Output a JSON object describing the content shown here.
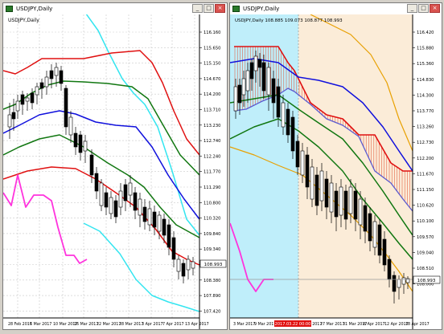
{
  "window_controls": {
    "minimize": "_",
    "maximize": "□",
    "close": "×"
  },
  "left": {
    "window_title": "USDJPY,Daily",
    "chart_label": "USDJPY,Daily",
    "price_ticks": [
      "116.160",
      "115.650",
      "115.150",
      "114.670",
      "114.200",
      "113.710",
      "113.230",
      "112.740",
      "112.240",
      "111.770",
      "111.290",
      "110.800",
      "110.320",
      "109.840",
      "109.340",
      "108.860",
      "108.380",
      "107.890",
      "107.420"
    ],
    "current_price": "108.993",
    "date_ticks": [
      "28 Feb 2017",
      "6 Mar 2017",
      "10 Mar 2017",
      "16 Mar 2017",
      "22 Mar 2017",
      "28 Mar 2017",
      "3 Apr 2017",
      "7 Apr 2017",
      "13 Apr 2017"
    ]
  },
  "right": {
    "window_title": "USDJPY,Daily",
    "chart_label": "USDJPY,Daily  108.885 109.073 108.877 108.993",
    "price_ticks": [
      "116.420",
      "115.880",
      "115.360",
      "114.830",
      "114.300",
      "113.770",
      "113.260",
      "112.730",
      "112.200",
      "111.670",
      "111.150",
      "110.620",
      "110.100",
      "109.570",
      "109.040",
      "108.510",
      "108.000"
    ],
    "current_price": "108.993",
    "date_ticks": [
      "3 Mar 2017",
      "9 Mar 2017",
      "15 Mar 2017",
      "21 Mar 2017",
      "27 Mar 2017",
      "31 Mar 2017",
      "6 Apr 2017",
      "12 Apr 2017",
      "18 Apr 2017"
    ],
    "date_highlight": "2017.03.22 00:00"
  },
  "colors": {
    "sigma3": "#33e5f0",
    "sigma2": "#e01010",
    "sigma1": "#117711",
    "ma": "#1010dd",
    "momentum": "#ff33dd",
    "envelope": "#e8a000",
    "cloud_fill": "#fbecd8",
    "cloud_blue": "#bfeefa"
  }
}
